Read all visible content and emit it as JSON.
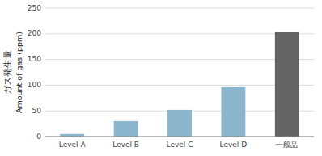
{
  "chart_data": {
    "type": "bar",
    "categories": [
      "Level A",
      "Level B",
      "Level C",
      "Level D",
      "一般品"
    ],
    "values": [
      5,
      30,
      52,
      96,
      203
    ],
    "colors": [
      "#8ab5cc",
      "#8ab5cc",
      "#8ab5cc",
      "#8ab5cc",
      "#636363"
    ],
    "ylabel": [
      "ガス発生量",
      "Amount of gas (ppm)"
    ],
    "ylim": [
      0,
      250
    ],
    "yticks": [
      0,
      50,
      100,
      150,
      200,
      250
    ],
    "grid": true
  }
}
